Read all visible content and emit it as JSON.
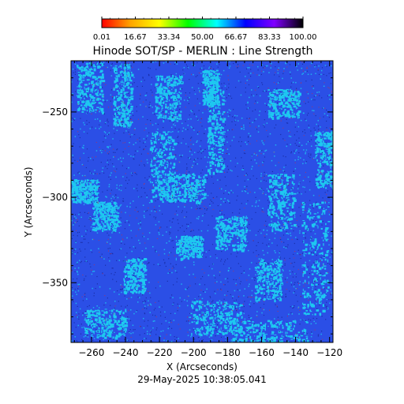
{
  "chart_data": {
    "type": "heatmap",
    "title": "Hinode SOT/SP - MERLIN : Line Strength",
    "xlabel": "X (Arcseconds)",
    "ylabel": "Y (Arcseconds)",
    "timestamp": "29-May-2025 10:38:05.041",
    "xlim": [
      -272,
      -118
    ],
    "ylim": [
      -385,
      -220
    ],
    "x_ticks": [
      {
        "value": -260,
        "label": "−260"
      },
      {
        "value": -240,
        "label": "−240"
      },
      {
        "value": -220,
        "label": "−220"
      },
      {
        "value": -200,
        "label": "−200"
      },
      {
        "value": -180,
        "label": "−180"
      },
      {
        "value": -160,
        "label": "−160"
      },
      {
        "value": -140,
        "label": "−140"
      },
      {
        "value": -120,
        "label": "−120"
      }
    ],
    "y_ticks": [
      {
        "value": -250,
        "label": "−250"
      },
      {
        "value": -300,
        "label": "−300"
      },
      {
        "value": -350,
        "label": "−350"
      }
    ],
    "colorbar": {
      "range": [
        0.01,
        100.0
      ],
      "labels": [
        "0.01",
        "16.67",
        "33.34",
        "50.00",
        "66.67",
        "83.33",
        "100.00"
      ],
      "stops": [
        "#ff0000",
        "#ffa500",
        "#ffff00",
        "#00ff00",
        "#00ffff",
        "#0000ff",
        "#8000ff",
        "#000000"
      ]
    },
    "map_colors": {
      "background": "#2b4fe6",
      "bright_patch": "#1ec8f0",
      "speckle_dark": "#1a2fa8",
      "speckle_red": "#c0304a"
    }
  }
}
